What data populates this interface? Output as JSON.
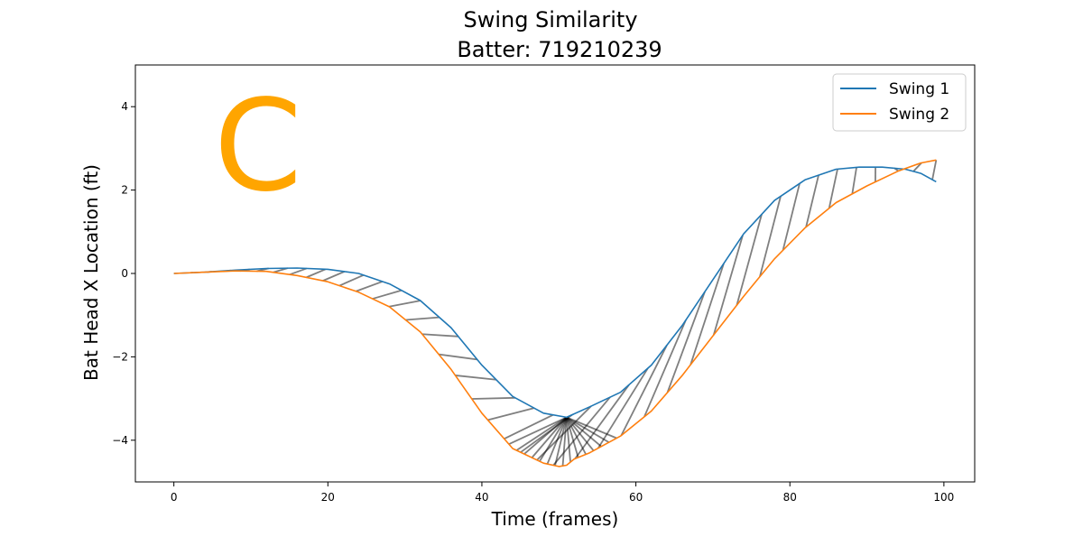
{
  "chart_data": {
    "type": "line",
    "title_line1": "Swing Similarity",
    "title_line2": "Batter: 719210239",
    "xlabel": "Time (frames)",
    "ylabel": "Bat Head X Location (ft)",
    "xlim": [
      -5,
      104
    ],
    "ylim": [
      -5,
      5
    ],
    "xticks": [
      0,
      20,
      40,
      60,
      80,
      100
    ],
    "yticks": [
      -4,
      -2,
      0,
      2,
      4
    ],
    "xtick_labels": [
      "0",
      "20",
      "40",
      "60",
      "80",
      "100"
    ],
    "ytick_labels": [
      "−4",
      "−2",
      "0",
      "2",
      "4"
    ],
    "grid": false,
    "legend_position": "top-right",
    "annotation": {
      "text": "C",
      "color": "#ffa500"
    },
    "alignment_line_color": "#000000",
    "series": [
      {
        "name": "Swing 1",
        "color": "#1f77b4",
        "x": [
          0,
          4,
          8,
          12,
          16,
          20,
          24,
          28,
          32,
          36,
          40,
          44,
          48,
          51,
          54,
          58,
          62,
          66,
          70,
          74,
          78,
          82,
          86,
          89,
          92,
          95,
          97,
          99
        ],
        "y": [
          0.0,
          0.03,
          0.08,
          0.12,
          0.13,
          0.1,
          0.0,
          -0.25,
          -0.65,
          -1.3,
          -2.2,
          -2.95,
          -3.35,
          -3.45,
          -3.2,
          -2.85,
          -2.2,
          -1.25,
          -0.15,
          0.95,
          1.75,
          2.25,
          2.5,
          2.55,
          2.55,
          2.5,
          2.4,
          2.2
        ]
      },
      {
        "name": "Swing 2",
        "color": "#ff7f0e",
        "x": [
          0,
          4,
          8,
          12,
          16,
          20,
          24,
          28,
          32,
          36,
          40,
          44,
          48,
          50,
          51,
          52,
          54,
          58,
          62,
          66,
          70,
          74,
          78,
          82,
          86,
          90,
          94,
          97,
          99
        ],
        "y": [
          0.0,
          0.03,
          0.06,
          0.05,
          -0.05,
          -0.2,
          -0.45,
          -0.8,
          -1.4,
          -2.3,
          -3.35,
          -4.2,
          -4.55,
          -4.63,
          -4.6,
          -4.45,
          -4.3,
          -3.9,
          -3.3,
          -2.45,
          -1.5,
          -0.55,
          0.35,
          1.1,
          1.7,
          2.1,
          2.45,
          2.65,
          2.72
        ]
      }
    ]
  }
}
